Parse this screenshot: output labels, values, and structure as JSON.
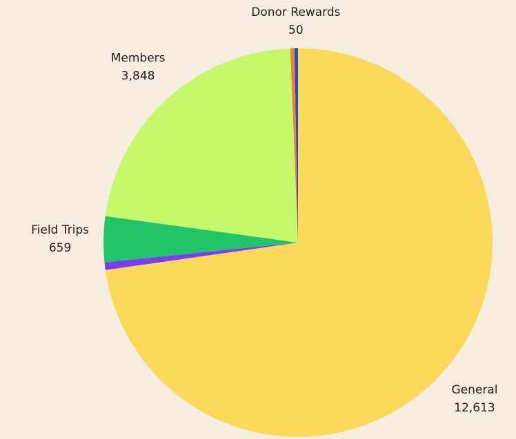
{
  "chart_data": {
    "type": "pie",
    "categories": [
      "General",
      null,
      "Field Trips",
      "Members",
      null,
      "Donor Rewards"
    ],
    "values": [
      12613,
      110,
      659,
      3848,
      60,
      50
    ],
    "value_labels": [
      "12,613",
      null,
      "659",
      "3,848",
      null,
      "50"
    ],
    "colors": [
      "#fdd95b",
      "#7a3cf2",
      "#22c46a",
      "#c6f86c",
      "#f0803c",
      "#1d4fc6"
    ],
    "start_angle": 0,
    "direction": "clockwise"
  }
}
